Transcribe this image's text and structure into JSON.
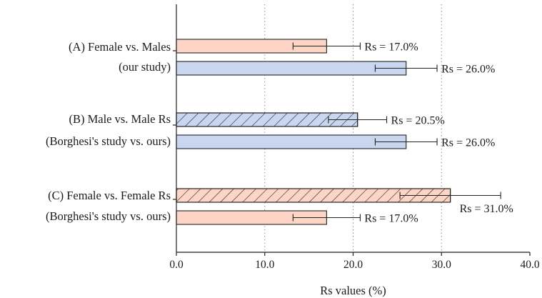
{
  "chart_data": {
    "type": "bar",
    "orientation": "horizontal",
    "xlabel": "Rs values (%)",
    "xlim": [
      0,
      40
    ],
    "xticks": [
      0,
      10,
      20,
      30,
      40
    ],
    "xtick_labels": [
      "0.0",
      "10.0",
      "20.0",
      "30.0",
      "40.0"
    ],
    "grid": "vertical dotted",
    "groups": [
      {
        "label_lines": [
          "(A) Female vs. Males",
          "(our study)"
        ],
        "bars": [
          {
            "value": 17.0,
            "error": 3.8,
            "label": "Rs = 17.0%",
            "color": "#fcd5c6",
            "hatched": false
          },
          {
            "value": 26.0,
            "error": 3.5,
            "label": "Rs = 26.0%",
            "color": "#c9d6f0",
            "hatched": false
          }
        ]
      },
      {
        "label_lines": [
          "(B) Male vs. Male Rs",
          "(Borghesi's study vs. ours)"
        ],
        "bars": [
          {
            "value": 20.5,
            "error": 3.3,
            "label": "Rs = 20.5%",
            "color": "#c9d6f0",
            "hatched": true
          },
          {
            "value": 26.0,
            "error": 3.5,
            "label": "Rs = 26.0%",
            "color": "#c9d6f0",
            "hatched": false
          }
        ]
      },
      {
        "label_lines": [
          "(C) Female vs. Female Rs",
          "(Borghesi's study vs. ours)"
        ],
        "bars": [
          {
            "value": 31.0,
            "error": 5.7,
            "label": "Rs = 31.0%",
            "color": "#fcd5c6",
            "hatched": true
          },
          {
            "value": 17.0,
            "error": 3.8,
            "label": "Rs = 17.0%",
            "color": "#fcd5c6",
            "hatched": false
          }
        ]
      }
    ]
  }
}
